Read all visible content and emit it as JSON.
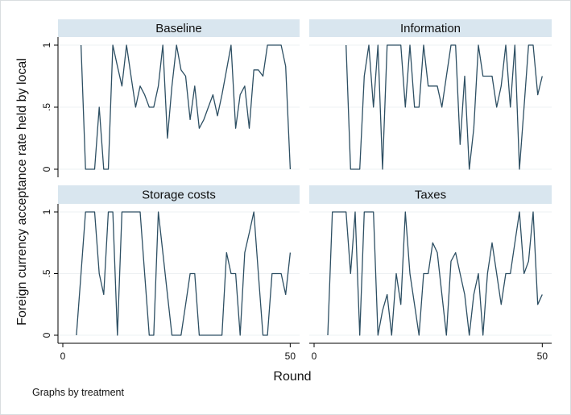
{
  "chart_data": {
    "type": "line",
    "xlabel": "Round",
    "ylabel": "Foreign currency acceptance rate held by local",
    "note": "Graphs by treatment",
    "xlim": [
      0,
      51
    ],
    "ylim": [
      0,
      1
    ],
    "x_ticks": [
      0,
      50
    ],
    "x_tick_labels": [
      "0",
      "50"
    ],
    "y_ticks": [
      0,
      0.5,
      1
    ],
    "y_tick_labels": [
      "0",
      ".5",
      "1"
    ],
    "panels": [
      {
        "title": "Baseline",
        "x": [
          4,
          5,
          6,
          7,
          8,
          9,
          10,
          11,
          12,
          13,
          14,
          15,
          16,
          17,
          18,
          19,
          20,
          21,
          22,
          23,
          24,
          25,
          26,
          27,
          28,
          29,
          30,
          31,
          32,
          33,
          34,
          35,
          36,
          37,
          38,
          39,
          40,
          41,
          42,
          43,
          44,
          45,
          46,
          47,
          48,
          49,
          50
        ],
        "values": [
          1,
          0,
          0,
          0,
          0.5,
          0,
          0,
          1,
          0.83,
          0.67,
          1,
          0.75,
          0.5,
          0.67,
          0.6,
          0.5,
          0.5,
          0.67,
          1,
          0.25,
          0.67,
          1,
          0.8,
          0.75,
          0.4,
          0.67,
          0.33,
          0.4,
          0.5,
          0.6,
          0.43,
          0.6,
          0.8,
          1,
          0.33,
          0.6,
          0.67,
          0.33,
          0.8,
          0.8,
          0.75,
          1,
          1,
          1,
          1,
          0.83,
          0
        ]
      },
      {
        "title": "Information",
        "x": [
          7,
          8,
          9,
          10,
          11,
          12,
          13,
          14,
          15,
          16,
          17,
          18,
          19,
          20,
          21,
          22,
          23,
          24,
          25,
          26,
          27,
          28,
          29,
          30,
          31,
          32,
          33,
          34,
          35,
          36,
          37,
          38,
          39,
          40,
          41,
          42,
          43,
          44,
          45,
          46,
          47,
          48,
          49,
          50
        ],
        "values": [
          1,
          0,
          0,
          0,
          0.75,
          1,
          0.5,
          1,
          0,
          1,
          1,
          1,
          1,
          0.5,
          1,
          0.5,
          0.5,
          1,
          0.67,
          0.67,
          0.67,
          0.5,
          0.75,
          1,
          1,
          0.2,
          0.75,
          0,
          0.33,
          1,
          0.75,
          0.75,
          0.75,
          0.5,
          0.67,
          1,
          0.5,
          1,
          0,
          0.5,
          1,
          1,
          0.6,
          0.75
        ]
      },
      {
        "title": "Storage costs",
        "x": [
          3,
          4,
          5,
          6,
          7,
          8,
          9,
          10,
          11,
          12,
          13,
          14,
          15,
          16,
          17,
          18,
          19,
          20,
          21,
          22,
          23,
          24,
          25,
          26,
          27,
          28,
          29,
          30,
          31,
          32,
          33,
          34,
          35,
          36,
          37,
          38,
          39,
          40,
          41,
          42,
          43,
          44,
          45,
          46,
          47,
          48,
          49,
          50
        ],
        "values": [
          0,
          0.5,
          1,
          1,
          1,
          0.5,
          0.33,
          1,
          1,
          0,
          1,
          1,
          1,
          1,
          1,
          0.5,
          0,
          0,
          1,
          0.67,
          0.33,
          0,
          0,
          0,
          0.25,
          0.5,
          0.5,
          0,
          0,
          0,
          0,
          0,
          0,
          0.67,
          0.5,
          0.5,
          0,
          0.67,
          0.83,
          1,
          0.5,
          0,
          0,
          0.5,
          0.5,
          0.5,
          0.33,
          0.67
        ]
      },
      {
        "title": "Taxes",
        "x": [
          3,
          4,
          5,
          6,
          7,
          8,
          9,
          10,
          11,
          12,
          13,
          14,
          15,
          16,
          17,
          18,
          19,
          20,
          21,
          22,
          23,
          24,
          25,
          26,
          27,
          28,
          29,
          30,
          31,
          32,
          33,
          34,
          35,
          36,
          37,
          38,
          39,
          40,
          41,
          42,
          43,
          44,
          45,
          46,
          47,
          48,
          49,
          50
        ],
        "values": [
          0,
          1,
          1,
          1,
          1,
          0.5,
          1,
          0,
          1,
          1,
          1,
          0,
          0.2,
          0.33,
          0,
          0.5,
          0.25,
          1,
          0.5,
          0.25,
          0,
          0.5,
          0.5,
          0.75,
          0.67,
          0.33,
          0,
          0.6,
          0.67,
          0.5,
          0.33,
          0,
          0.33,
          0.5,
          0,
          0.5,
          0.75,
          0.5,
          0.25,
          0.5,
          0.5,
          0.75,
          1,
          0.5,
          0.6,
          1,
          0.25,
          0.33
        ]
      }
    ]
  }
}
